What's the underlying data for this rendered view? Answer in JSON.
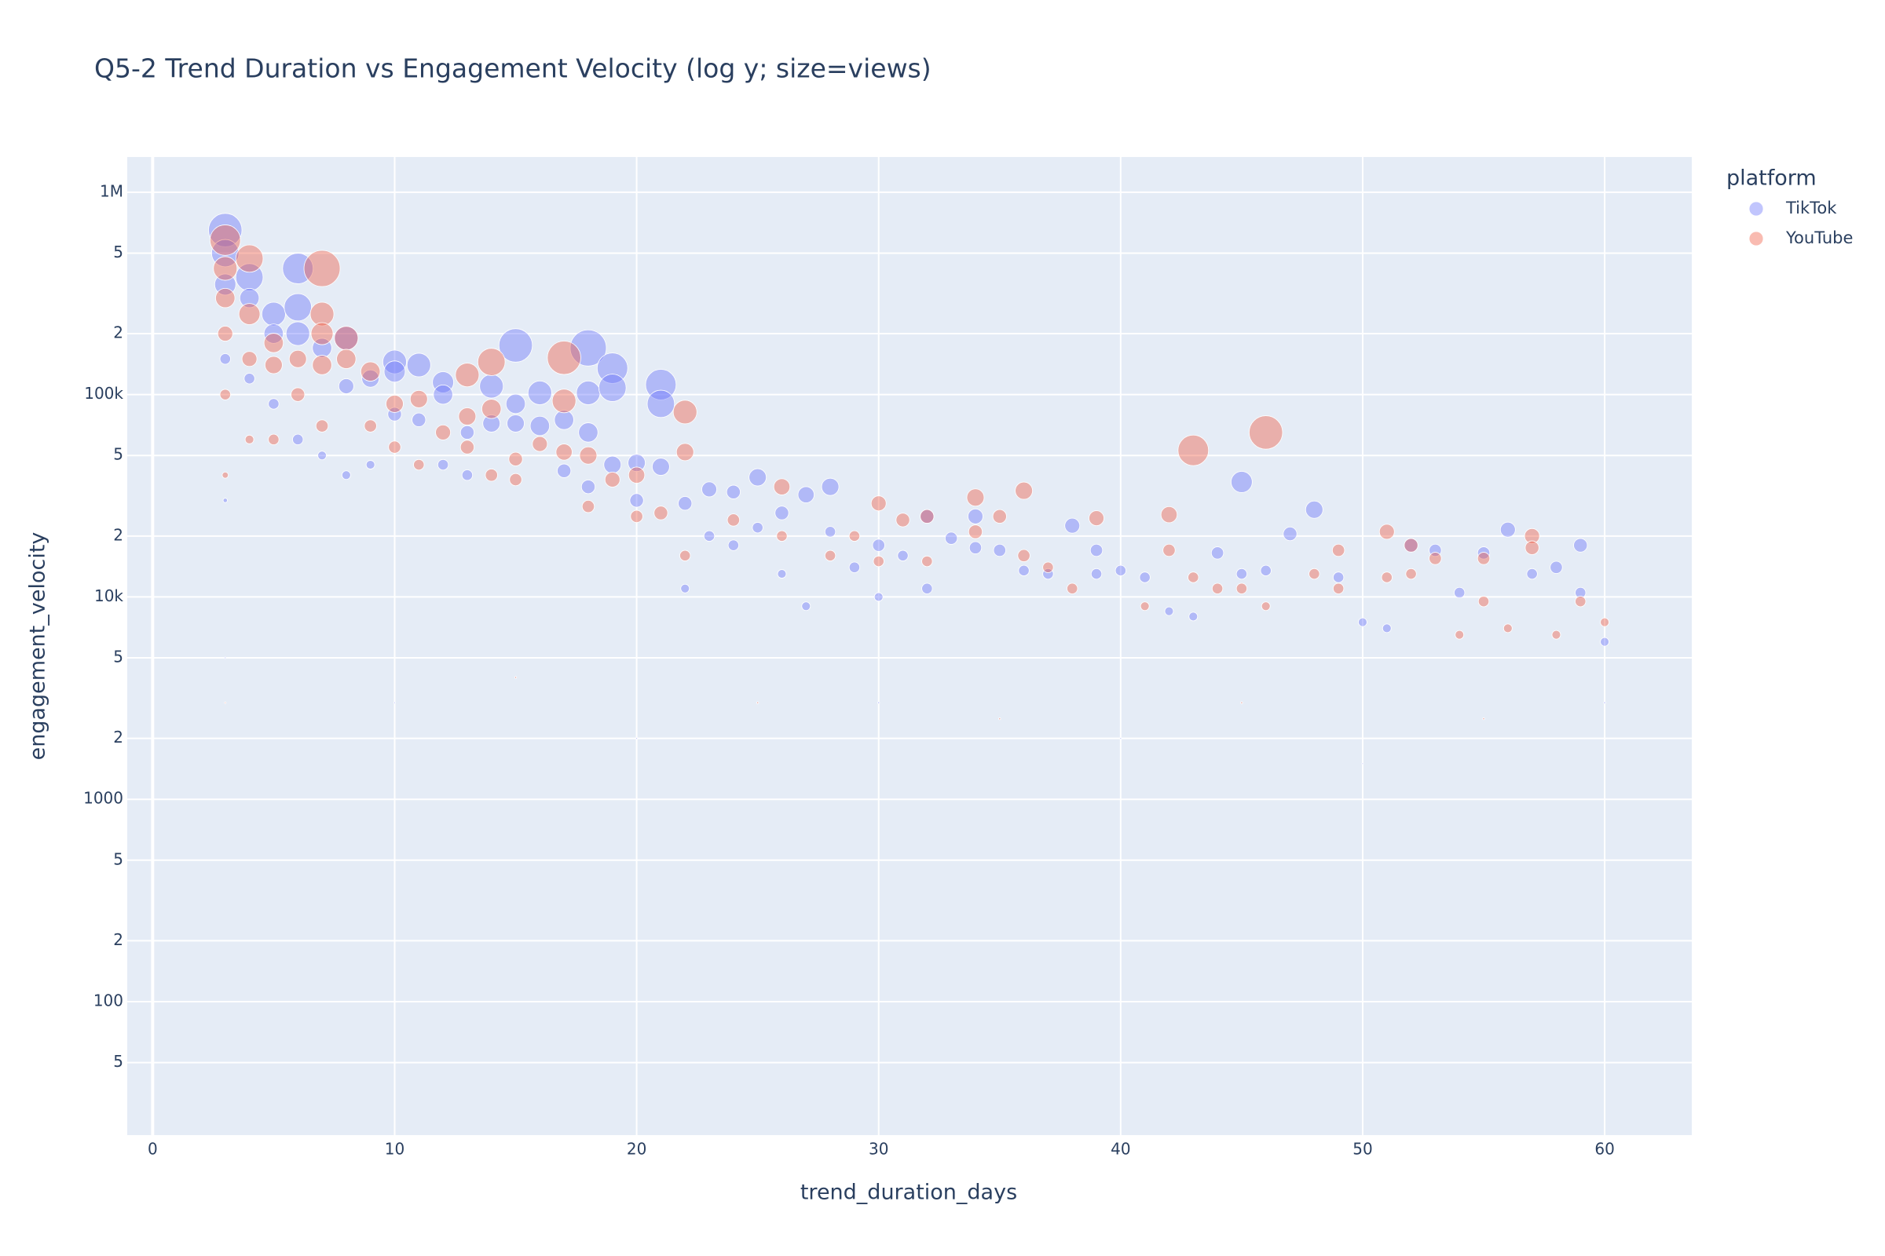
{
  "chart_data": {
    "type": "scatter",
    "title": "Q5-2 Trend Duration vs Engagement Velocity (log y; size=views)",
    "x_label": "trend_duration_days",
    "y_label": "engagement_velocity",
    "legend_title": "platform",
    "legend_position": "right",
    "log_y": true,
    "grid": true,
    "xlim": [
      -1.05,
      63.6
    ],
    "ylim": [
      21.9,
      1493000
    ],
    "xticks": [
      0,
      10,
      20,
      30,
      40,
      50,
      60
    ],
    "yticks": [
      {
        "value": 1000000,
        "label": "1M"
      },
      {
        "value": 500000,
        "label": "5"
      },
      {
        "value": 200000,
        "label": "2"
      },
      {
        "value": 100000,
        "label": "100k"
      },
      {
        "value": 50000,
        "label": "5"
      },
      {
        "value": 20000,
        "label": "2"
      },
      {
        "value": 10000,
        "label": "10k"
      },
      {
        "value": 5000,
        "label": "5"
      },
      {
        "value": 2000,
        "label": "2"
      },
      1000,
      {
        "value": 500,
        "label": "5"
      },
      {
        "value": 200,
        "label": "2"
      },
      100,
      {
        "value": 50,
        "label": "5"
      }
    ],
    "series": [
      {
        "name": "TikTok",
        "color": "#636efa",
        "x": [
          3,
          3,
          3,
          3,
          3,
          3,
          4,
          4,
          4,
          5,
          5,
          5,
          6,
          6,
          6,
          6,
          7,
          7,
          8,
          8,
          8,
          9,
          9,
          10,
          10,
          10,
          10,
          11,
          11,
          12,
          12,
          12,
          13,
          13,
          14,
          14,
          15,
          15,
          15,
          16,
          16,
          17,
          17,
          18,
          18,
          18,
          18,
          19,
          19,
          19,
          20,
          20,
          20,
          21,
          21,
          21,
          22,
          22,
          23,
          23,
          24,
          24,
          25,
          25,
          26,
          26,
          27,
          27,
          28,
          28,
          29,
          30,
          30,
          30,
          31,
          32,
          32,
          33,
          34,
          34,
          35,
          36,
          37,
          38,
          39,
          39,
          40,
          40,
          41,
          42,
          43,
          44,
          45,
          45,
          46,
          47,
          48,
          49,
          50,
          50,
          51,
          52,
          53,
          54,
          55,
          56,
          57,
          58,
          59,
          59,
          60,
          60
        ],
        "values": [
          650000,
          500000,
          350000,
          150000,
          30000,
          5000,
          380000,
          300000,
          120000,
          250000,
          200000,
          90000,
          420000,
          270000,
          200000,
          60000,
          170000,
          50000,
          190000,
          110000,
          40000,
          120000,
          45000,
          145000,
          130000,
          80000,
          3000,
          140000,
          75000,
          115000,
          100000,
          45000,
          65000,
          40000,
          110000,
          72000,
          175000,
          90000,
          72000,
          102000,
          70000,
          75000,
          42000,
          170000,
          102000,
          65000,
          35000,
          135000,
          108000,
          45000,
          46000,
          30000,
          2000,
          112000,
          90000,
          44000,
          29000,
          11000,
          34000,
          20000,
          33000,
          18000,
          39000,
          22000,
          26000,
          13000,
          32000,
          9000,
          35000,
          21000,
          14000,
          18000,
          10000,
          3000,
          16000,
          25000,
          11000,
          19500,
          25000,
          17500,
          17000,
          13500,
          13000,
          22500,
          17000,
          13000,
          13500,
          2000,
          12500,
          8500,
          8000,
          16500,
          37000,
          13000,
          13500,
          20500,
          27000,
          12500,
          7500,
          1500,
          7000,
          18000,
          17000,
          10500,
          16500,
          21500,
          13000,
          14000,
          18000,
          10500,
          6000,
          3000
        ],
        "sizes": [
          3000000,
          2000000,
          1200000,
          300000,
          50000,
          5000,
          2000000,
          1000000,
          300000,
          1500000,
          1000000,
          300000,
          2500000,
          2000000,
          1500000,
          300000,
          1000000,
          200000,
          1500000,
          600000,
          200000,
          800000,
          200000,
          1500000,
          1200000,
          500000,
          5000,
          1500000,
          500000,
          1200000,
          1000000,
          300000,
          500000,
          300000,
          1500000,
          800000,
          3000000,
          1000000,
          800000,
          1500000,
          1000000,
          1000000,
          500000,
          3500000,
          1500000,
          1000000,
          500000,
          2500000,
          2000000,
          800000,
          800000,
          500000,
          5000,
          2500000,
          2000000,
          800000,
          500000,
          200000,
          600000,
          300000,
          500000,
          300000,
          800000,
          300000,
          500000,
          200000,
          700000,
          200000,
          800000,
          300000,
          300000,
          400000,
          200000,
          10000,
          300000,
          500000,
          300000,
          400000,
          600000,
          400000,
          400000,
          300000,
          300000,
          600000,
          400000,
          300000,
          300000,
          5000,
          300000,
          200000,
          200000,
          400000,
          1200000,
          300000,
          300000,
          500000,
          800000,
          300000,
          200000,
          5000,
          200000,
          500000,
          400000,
          300000,
          400000,
          600000,
          300000,
          400000,
          500000,
          300000,
          200000,
          10000
        ]
      },
      {
        "name": "YouTube",
        "color": "#ef553b",
        "x": [
          3,
          3,
          3,
          3,
          3,
          3,
          3,
          4,
          4,
          4,
          4,
          5,
          5,
          5,
          6,
          6,
          7,
          7,
          7,
          7,
          7,
          8,
          8,
          9,
          9,
          10,
          10,
          11,
          11,
          12,
          13,
          13,
          13,
          14,
          14,
          14,
          15,
          15,
          15,
          16,
          17,
          17,
          17,
          18,
          18,
          19,
          20,
          20,
          21,
          22,
          22,
          22,
          24,
          25,
          26,
          26,
          28,
          29,
          30,
          30,
          31,
          32,
          32,
          34,
          34,
          35,
          35,
          36,
          36,
          37,
          38,
          39,
          41,
          42,
          42,
          43,
          43,
          44,
          45,
          45,
          46,
          46,
          48,
          49,
          49,
          51,
          51,
          52,
          52,
          53,
          54,
          55,
          55,
          55,
          56,
          57,
          57,
          58,
          59,
          60
        ],
        "values": [
          580000,
          420000,
          300000,
          200000,
          100000,
          40000,
          3000,
          470000,
          250000,
          150000,
          60000,
          180000,
          140000,
          60000,
          150000,
          100000,
          420000,
          250000,
          200000,
          140000,
          70000,
          190000,
          150000,
          130000,
          70000,
          90000,
          55000,
          95000,
          45000,
          65000,
          125000,
          78000,
          55000,
          145000,
          85000,
          40000,
          48000,
          38000,
          4000,
          57000,
          152000,
          93000,
          52000,
          50000,
          28000,
          38000,
          40000,
          25000,
          26000,
          82000,
          52000,
          16000,
          24000,
          3000,
          35000,
          20000,
          16000,
          20000,
          29000,
          15000,
          24000,
          25000,
          15000,
          31000,
          21000,
          25000,
          2500,
          33500,
          16000,
          14000,
          11000,
          24500,
          9000,
          25500,
          17000,
          53000,
          12500,
          11000,
          11000,
          3000,
          65000,
          9000,
          13000,
          17000,
          11000,
          21000,
          12500,
          18000,
          13000,
          15500,
          6500,
          15500,
          9500,
          2500,
          7000,
          20000,
          17500,
          6500,
          9500,
          7500
        ],
        "sizes": [
          2500000,
          1500000,
          1000000,
          600000,
          300000,
          100000,
          5000,
          2000000,
          1200000,
          600000,
          200000,
          1000000,
          800000,
          300000,
          800000,
          500000,
          3500000,
          1500000,
          1300000,
          1000000,
          400000,
          1500000,
          1000000,
          1000000,
          400000,
          800000,
          400000,
          800000,
          300000,
          600000,
          1500000,
          800000,
          500000,
          2000000,
          1000000,
          400000,
          500000,
          400000,
          10000,
          600000,
          3000000,
          1500000,
          700000,
          800000,
          400000,
          600000,
          700000,
          400000,
          500000,
          1500000,
          800000,
          300000,
          400000,
          10000,
          700000,
          300000,
          300000,
          300000,
          600000,
          300000,
          500000,
          500000,
          300000,
          800000,
          500000,
          500000,
          10000,
          800000,
          400000,
          300000,
          300000,
          600000,
          200000,
          700000,
          400000,
          2500000,
          300000,
          300000,
          300000,
          10000,
          3000000,
          200000,
          300000,
          400000,
          300000,
          600000,
          300000,
          500000,
          300000,
          400000,
          200000,
          400000,
          300000,
          10000,
          200000,
          600000,
          500000,
          200000,
          300000,
          200000
        ]
      }
    ]
  }
}
